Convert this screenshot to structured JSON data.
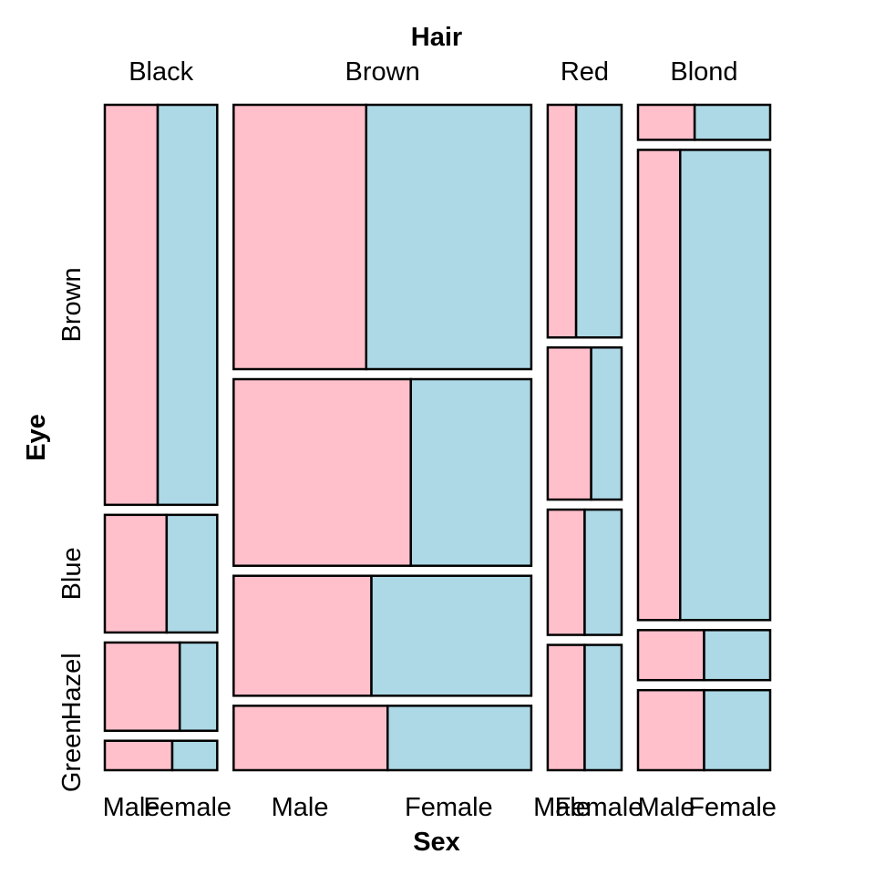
{
  "chart_data": {
    "type": "mosaic",
    "x_variable": "Hair",
    "y_variable": "Eye",
    "split_variable": "Sex",
    "x_categories": [
      "Black",
      "Brown",
      "Red",
      "Blond"
    ],
    "y_categories": [
      "Brown",
      "Blue",
      "Hazel",
      "Green"
    ],
    "split_categories": [
      "Male",
      "Female"
    ],
    "split_colors": {
      "Male": "#ffc0cb",
      "Female": "#add8e6"
    },
    "counts": {
      "Black": {
        "Brown": {
          "Male": 32,
          "Female": 36
        },
        "Blue": {
          "Male": 11,
          "Female": 9
        },
        "Hazel": {
          "Male": 10,
          "Female": 5
        },
        "Green": {
          "Male": 3,
          "Female": 2
        }
      },
      "Brown": {
        "Brown": {
          "Male": 53,
          "Female": 66
        },
        "Blue": {
          "Male": 50,
          "Female": 34
        },
        "Hazel": {
          "Male": 25,
          "Female": 29
        },
        "Green": {
          "Male": 15,
          "Female": 14
        }
      },
      "Red": {
        "Brown": {
          "Male": 10,
          "Female": 16
        },
        "Blue": {
          "Male": 10,
          "Female": 7
        },
        "Hazel": {
          "Male": 7,
          "Female": 7
        },
        "Green": {
          "Male": 7,
          "Female": 7
        }
      },
      "Blond": {
        "Brown": {
          "Male": 3,
          "Female": 4
        },
        "Blue": {
          "Male": 30,
          "Female": 64
        },
        "Hazel": {
          "Male": 5,
          "Female": 5
        },
        "Green": {
          "Male": 8,
          "Female": 8
        }
      }
    },
    "x_title": "Hair",
    "y_title": "Eye",
    "bottom_title": "Sex"
  }
}
